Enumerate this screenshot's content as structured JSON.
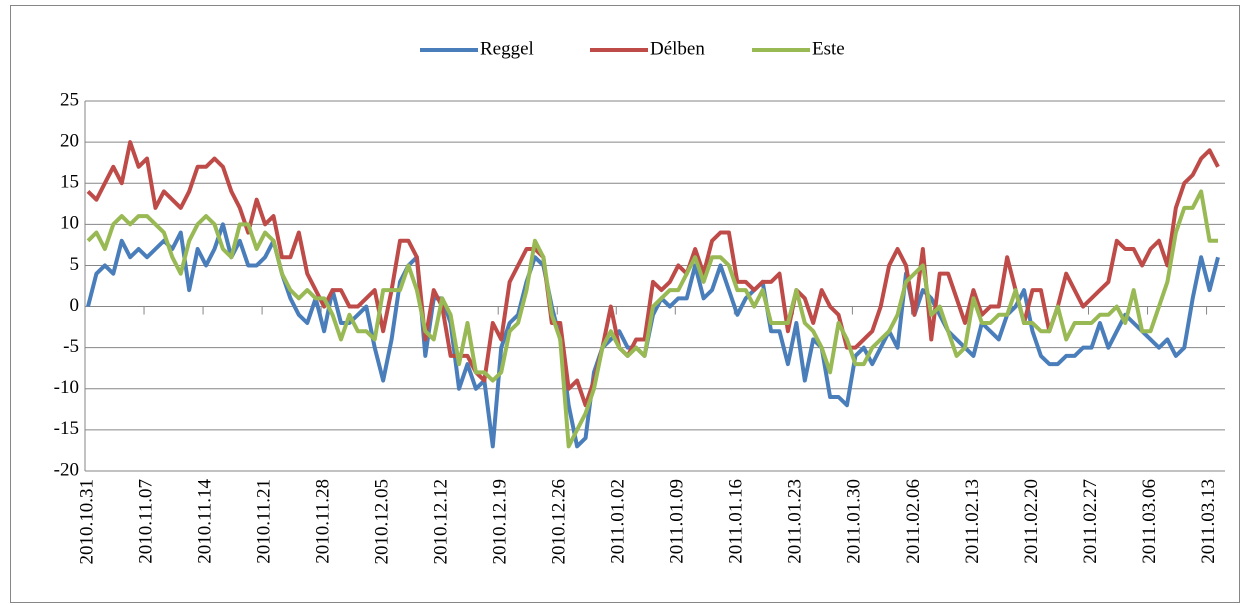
{
  "chart_data": {
    "type": "line",
    "categories": [
      "2010.10.31",
      null,
      null,
      null,
      null,
      null,
      null,
      "2010.11.07",
      null,
      null,
      null,
      null,
      null,
      null,
      "2010.11.14",
      null,
      null,
      null,
      null,
      null,
      null,
      "2010.11.21",
      null,
      null,
      null,
      null,
      null,
      null,
      "2010.11.28",
      null,
      null,
      null,
      null,
      null,
      null,
      "2010.12.05",
      null,
      null,
      null,
      null,
      null,
      null,
      "2010.12.12",
      null,
      null,
      null,
      null,
      null,
      null,
      "2010.12.19",
      null,
      null,
      null,
      null,
      null,
      null,
      "2010.12.26",
      null,
      null,
      null,
      null,
      null,
      null,
      "2011.01.02",
      null,
      null,
      null,
      null,
      null,
      null,
      "2011.01.09",
      null,
      null,
      null,
      null,
      null,
      null,
      "2011.01.16",
      null,
      null,
      null,
      null,
      null,
      null,
      "2011.01.23",
      null,
      null,
      null,
      null,
      null,
      null,
      "2011.01.30",
      null,
      null,
      null,
      null,
      null,
      null,
      "2011.02.06",
      null,
      null,
      null,
      null,
      null,
      null,
      "2011.02.13",
      null,
      null,
      null,
      null,
      null,
      null,
      "2011.02.20",
      null,
      null,
      null,
      null,
      null,
      null,
      "2011.02.27",
      null,
      null,
      null,
      null,
      null,
      null,
      "2011.03.06",
      null,
      null,
      null,
      null,
      null,
      null,
      "2011.03.13",
      null
    ],
    "series": [
      {
        "name": "Reggel",
        "color": "#4a7ebb",
        "values": [
          0,
          4,
          5,
          4,
          8,
          6,
          7,
          6,
          7,
          8,
          7,
          9,
          2,
          7,
          5,
          7,
          10,
          6,
          8,
          5,
          5,
          6,
          8,
          4,
          1,
          -1,
          -2,
          1,
          -3,
          2,
          -2,
          -2,
          -1,
          0,
          -5,
          -9,
          -4,
          3,
          5,
          6,
          -6,
          1,
          1,
          -2,
          -10,
          -7,
          -10,
          -9,
          -17,
          -5,
          -2,
          -1,
          3,
          6,
          5,
          0,
          -4,
          -12,
          -17,
          -16,
          -8,
          -5,
          -4,
          -3,
          -5,
          -5,
          -6,
          -1,
          1,
          0,
          1,
          1,
          5,
          1,
          2,
          5,
          2,
          -1,
          1,
          2,
          3,
          -3,
          -3,
          -7,
          -2,
          -9,
          -4,
          -5,
          -11,
          -11,
          -12,
          -6,
          -5,
          -7,
          -5,
          -3,
          -5,
          4,
          -1,
          2,
          1,
          -1,
          -3,
          -4,
          -5,
          -6,
          -2,
          -3,
          -4,
          -1,
          0,
          2,
          -3,
          -6,
          -7,
          -7,
          -6,
          -6,
          -5,
          -5,
          -2,
          -5,
          -3,
          -1,
          -2,
          -3,
          -4,
          -5,
          -4,
          -6,
          -5,
          1,
          6,
          2,
          6
        ]
      },
      {
        "name": "Délben",
        "color": "#be4b48",
        "values": [
          14,
          13,
          15,
          17,
          15,
          20,
          17,
          18,
          12,
          14,
          13,
          12,
          14,
          17,
          17,
          18,
          17,
          14,
          12,
          9,
          13,
          10,
          11,
          6,
          6,
          9,
          4,
          2,
          0,
          2,
          2,
          0,
          0,
          1,
          2,
          -3,
          2,
          8,
          8,
          6,
          -4,
          2,
          0,
          -6,
          -6,
          -6,
          -8,
          -9,
          -2,
          -4,
          3,
          5,
          7,
          7,
          6,
          -2,
          -2,
          -10,
          -9,
          -12,
          -9,
          -5,
          0,
          -5,
          -6,
          -4,
          -4,
          3,
          2,
          3,
          5,
          4,
          7,
          4,
          8,
          9,
          9,
          3,
          3,
          2,
          3,
          3,
          4,
          -3,
          2,
          1,
          -2,
          2,
          0,
          -1,
          -5,
          -5,
          -4,
          -3,
          0,
          5,
          7,
          5,
          -1,
          7,
          -4,
          4,
          4,
          1,
          -2,
          2,
          -1,
          0,
          0,
          6,
          2,
          -2,
          2,
          2,
          -3,
          0,
          4,
          2,
          0,
          1,
          2,
          3,
          8,
          7,
          7,
          5,
          7,
          8,
          5,
          12,
          15,
          16,
          18,
          19,
          17
        ]
      },
      {
        "name": "Este",
        "color": "#98b954",
        "values": [
          8,
          9,
          7,
          10,
          11,
          10,
          11,
          11,
          10,
          9,
          6,
          4,
          8,
          10,
          11,
          10,
          7,
          6,
          10,
          10,
          7,
          9,
          8,
          4,
          2,
          1,
          2,
          1,
          1,
          -1,
          -4,
          -1,
          -3,
          -3,
          -4,
          2,
          2,
          2,
          5,
          2,
          -3,
          -4,
          1,
          -1,
          -7,
          -2,
          -8,
          -8,
          -9,
          -8,
          -3,
          -2,
          2,
          8,
          6,
          -1,
          -4,
          -17,
          -15,
          -13,
          -10,
          -5,
          -3,
          -5,
          -6,
          -5,
          -6,
          0,
          1,
          2,
          2,
          4,
          6,
          3,
          6,
          6,
          5,
          2,
          2,
          0,
          2,
          -2,
          -2,
          -2,
          2,
          -2,
          -3,
          -5,
          -8,
          -2,
          -4,
          -7,
          -7,
          -5,
          -4,
          -3,
          -1,
          3,
          4,
          5,
          -1,
          0,
          -3,
          -6,
          -5,
          1,
          -2,
          -2,
          -1,
          -1,
          2,
          -2,
          -2,
          -3,
          -3,
          0,
          -4,
          -2,
          -2,
          -2,
          -1,
          -1,
          0,
          -2,
          2,
          -3,
          -3,
          0,
          3,
          9,
          12,
          12,
          14,
          8,
          8
        ]
      }
    ],
    "ylim": [
      -20,
      25
    ],
    "yticks": [
      -20,
      -15,
      -10,
      -5,
      0,
      5,
      10,
      15,
      20,
      25
    ],
    "grid": true,
    "legend": "top"
  }
}
